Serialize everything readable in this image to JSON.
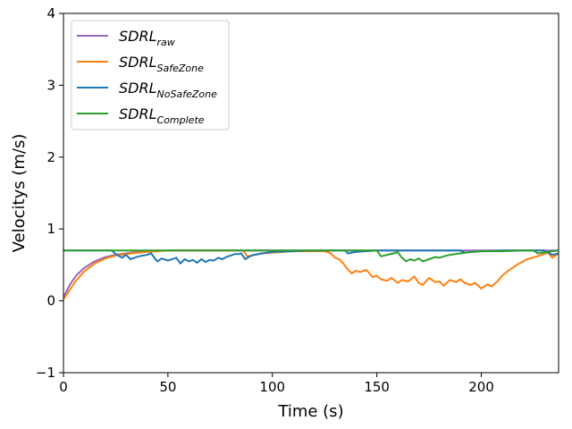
{
  "chart_data": {
    "type": "line",
    "xlabel": "Time (s)",
    "ylabel": "Velocitys (m/s)",
    "xlim": [
      0,
      237
    ],
    "ylim": [
      -1,
      4
    ],
    "xticks": [
      "0",
      "50",
      "100",
      "150",
      "200"
    ],
    "yticks": [
      "−1",
      "0",
      "1",
      "2",
      "3",
      "4"
    ],
    "xtick_values": [
      0,
      50,
      100,
      150,
      200
    ],
    "ytick_values": [
      -1,
      0,
      1,
      2,
      3,
      4
    ],
    "grid": false,
    "legend_position": "top-left",
    "series": [
      {
        "name": "SDRL",
        "subscript": "raw",
        "color": "#9467bd",
        "x": [
          0,
          3,
          6,
          10,
          15,
          20,
          25,
          30,
          35,
          40,
          45,
          50,
          237
        ],
        "y": [
          0.05,
          0.22,
          0.35,
          0.46,
          0.55,
          0.61,
          0.64,
          0.66,
          0.68,
          0.69,
          0.695,
          0.7,
          0.7
        ]
      },
      {
        "name": "SDRL",
        "subscript": "SafeZone",
        "color": "#ff7f0e",
        "x": [
          0,
          3,
          6,
          10,
          15,
          20,
          25,
          30,
          35,
          40,
          45,
          50,
          60,
          70,
          80,
          86,
          88,
          95,
          100,
          110,
          125,
          128,
          130,
          132,
          134,
          136,
          138,
          140,
          142,
          145,
          148,
          150,
          152,
          155,
          157,
          160,
          162,
          165,
          168,
          170,
          172,
          175,
          178,
          180,
          182,
          185,
          188,
          190,
          192,
          195,
          197,
          200,
          203,
          205,
          208,
          210,
          213,
          217,
          222,
          228,
          232,
          234,
          237
        ],
        "y": [
          0.02,
          0.15,
          0.28,
          0.41,
          0.52,
          0.59,
          0.63,
          0.65,
          0.67,
          0.68,
          0.69,
          0.7,
          0.7,
          0.7,
          0.7,
          0.7,
          0.62,
          0.66,
          0.67,
          0.69,
          0.69,
          0.66,
          0.6,
          0.58,
          0.52,
          0.44,
          0.38,
          0.42,
          0.4,
          0.43,
          0.33,
          0.35,
          0.3,
          0.28,
          0.32,
          0.25,
          0.29,
          0.27,
          0.34,
          0.25,
          0.22,
          0.32,
          0.26,
          0.27,
          0.21,
          0.29,
          0.26,
          0.3,
          0.25,
          0.22,
          0.25,
          0.17,
          0.23,
          0.2,
          0.28,
          0.35,
          0.42,
          0.5,
          0.58,
          0.63,
          0.67,
          0.6,
          0.66
        ]
      },
      {
        "name": "SDRL",
        "subscript": "NoSafeZone",
        "color": "#1f77b4",
        "x": [
          0,
          23,
          25,
          28,
          30,
          32,
          34,
          36,
          40,
          42,
          44,
          45,
          47,
          50,
          54,
          56,
          58,
          60,
          62,
          64,
          66,
          68,
          70,
          72,
          74,
          76,
          78,
          80,
          82,
          84,
          85,
          87,
          90,
          95,
          100,
          110,
          120,
          130,
          135,
          136,
          140,
          150,
          190,
          192,
          200,
          210,
          220,
          230,
          234,
          237
        ],
        "y": [
          0.7,
          0.7,
          0.65,
          0.6,
          0.64,
          0.58,
          0.6,
          0.62,
          0.64,
          0.66,
          0.58,
          0.55,
          0.59,
          0.56,
          0.6,
          0.52,
          0.58,
          0.55,
          0.57,
          0.53,
          0.58,
          0.54,
          0.57,
          0.56,
          0.6,
          0.58,
          0.61,
          0.63,
          0.65,
          0.65,
          0.66,
          0.58,
          0.63,
          0.66,
          0.68,
          0.69,
          0.7,
          0.7,
          0.7,
          0.66,
          0.68,
          0.7,
          0.7,
          0.67,
          0.69,
          0.7,
          0.7,
          0.7,
          0.64,
          0.66
        ]
      },
      {
        "name": "SDRL",
        "subscript": "Complete",
        "color": "#2ca02c",
        "x": [
          0,
          150,
          152,
          155,
          158,
          160,
          162,
          164,
          166,
          168,
          170,
          172,
          175,
          178,
          180,
          182,
          185,
          190,
          195,
          200,
          210,
          220,
          225,
          227,
          232,
          237
        ],
        "y": [
          0.7,
          0.7,
          0.62,
          0.64,
          0.66,
          0.68,
          0.6,
          0.55,
          0.58,
          0.56,
          0.59,
          0.55,
          0.58,
          0.61,
          0.6,
          0.62,
          0.64,
          0.66,
          0.68,
          0.69,
          0.69,
          0.7,
          0.7,
          0.66,
          0.68,
          0.7
        ]
      }
    ]
  }
}
